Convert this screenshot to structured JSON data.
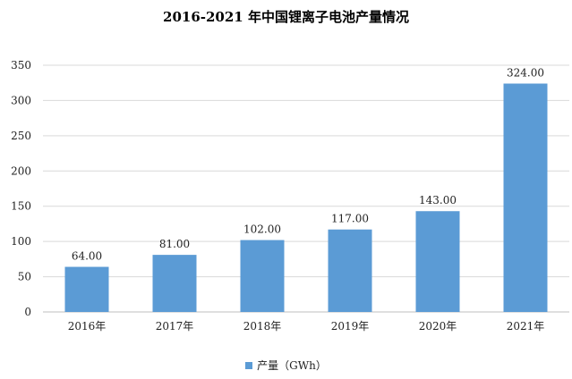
{
  "chart_data": {
    "type": "bar",
    "title": "2016-2021 年中国锂离子电池产量情况",
    "categories": [
      "2016年",
      "2017年",
      "2018年",
      "2019年",
      "2020年",
      "2021年"
    ],
    "series": [
      {
        "name": "产量（GWh）",
        "values": [
          64.0,
          81.0,
          102.0,
          117.0,
          143.0,
          324.0
        ],
        "color": "#5b9bd5"
      }
    ],
    "value_labels": [
      "64.00",
      "81.00",
      "102.00",
      "117.00",
      "143.00",
      "324.00"
    ],
    "yticks": [
      0,
      50,
      100,
      150,
      200,
      250,
      300,
      350
    ],
    "ylim": [
      0,
      350
    ],
    "grid": true,
    "legend_position": "bottom"
  }
}
